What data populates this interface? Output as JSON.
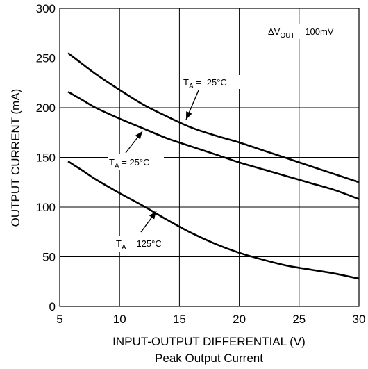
{
  "chart_data": {
    "type": "line",
    "title": "Peak Output Current",
    "xlabel": "INPUT-OUTPUT DIFFERENTIAL (V)",
    "ylabel": "OUTPUT CURRENT (mA)",
    "xlim": [
      5,
      30
    ],
    "ylim": [
      0,
      300
    ],
    "xticks": [
      5,
      10,
      15,
      20,
      25,
      30
    ],
    "yticks": [
      0,
      50,
      100,
      150,
      200,
      250,
      300
    ],
    "grid": true,
    "condition": {
      "prefix": "ΔV",
      "sub": "OUT",
      "suffix": " = 100mV"
    },
    "series": [
      {
        "name": "T_A = -25°C",
        "label": {
          "prefix": "T",
          "sub": "A",
          "suffix": " = -25°C"
        },
        "x": [
          5.7,
          7,
          8,
          10,
          12,
          14,
          16,
          18,
          20,
          22,
          24,
          26,
          28,
          30
        ],
        "y": [
          255,
          243,
          234,
          218,
          203,
          191,
          180,
          172,
          165,
          157,
          149,
          141,
          133,
          125
        ]
      },
      {
        "name": "T_A = 25°C",
        "label": {
          "prefix": "T",
          "sub": "A",
          "suffix": " = 25°C"
        },
        "x": [
          5.7,
          7,
          8,
          10,
          12,
          14,
          16,
          18,
          20,
          22,
          24,
          26,
          28,
          30
        ],
        "y": [
          216,
          207,
          200,
          189,
          179,
          169,
          161,
          153,
          145,
          138,
          131,
          124,
          117,
          108
        ]
      },
      {
        "name": "T_A = 125°C",
        "label": {
          "prefix": "T",
          "sub": "A",
          "suffix": " = 125°C"
        },
        "x": [
          5.7,
          7,
          8,
          10,
          12,
          14,
          16,
          18,
          20,
          22,
          24,
          26,
          28,
          30
        ],
        "y": [
          146,
          136,
          128,
          114,
          101,
          87,
          74,
          63,
          54,
          47,
          41,
          37,
          33,
          28
        ]
      }
    ]
  }
}
